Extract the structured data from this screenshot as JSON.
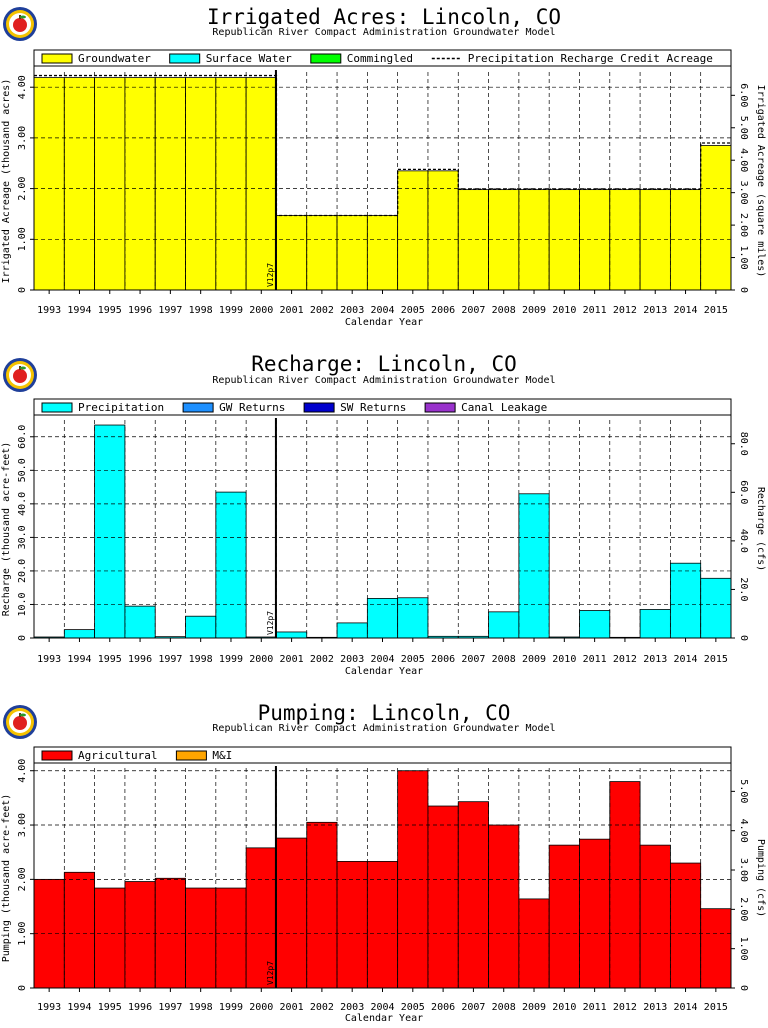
{
  "years": [
    "1993",
    "1994",
    "1995",
    "1996",
    "1997",
    "1998",
    "1999",
    "2000",
    "2001",
    "2002",
    "2003",
    "2004",
    "2005",
    "2006",
    "2007",
    "2008",
    "2009",
    "2010",
    "2011",
    "2012",
    "2013",
    "2014",
    "2015"
  ],
  "marker_label": "V12p7",
  "colors": {
    "groundwater": "#ffff00",
    "surface_water": "#00ffff",
    "commingled": "#00ff00",
    "precipitation": "#00ffff",
    "gw_returns": "#1e90ff",
    "sw_returns": "#0000cd",
    "canal_leakage": "#9932cc",
    "agricultural": "#ff0000",
    "mi": "#ffa500"
  },
  "chart_data": [
    {
      "type": "bar",
      "title": "Irrigated Acres: Lincoln, CO",
      "subtitle": "Republican River Compact Administration Groundwater Model",
      "xlabel": "Calendar Year",
      "ylabel": "Irrigated Acreage (thousand acres)",
      "ylabel_right": "Irrigated Acreage (square miles)",
      "ylim": [
        0,
        4.3
      ],
      "yticks": [
        {
          "v": 0,
          "t": "0"
        },
        {
          "v": 1,
          "t": "1.00"
        },
        {
          "v": 2,
          "t": "2.00"
        },
        {
          "v": 3,
          "t": "3.00"
        },
        {
          "v": 4,
          "t": "4.00"
        }
      ],
      "yticks_right": [
        {
          "v": 0,
          "t": "0"
        },
        {
          "v": 0.64,
          "t": "1.00"
        },
        {
          "v": 1.28,
          "t": "2.00"
        },
        {
          "v": 1.92,
          "t": "3.00"
        },
        {
          "v": 2.56,
          "t": "4.00"
        },
        {
          "v": 3.2,
          "t": "5.00"
        },
        {
          "v": 3.84,
          "t": "6.00"
        }
      ],
      "legend": [
        "Groundwater",
        "Surface Water",
        "Commingled",
        "Precipitation Recharge Credit Acreage"
      ],
      "legend_position": "top",
      "grid": true,
      "series": [
        {
          "name": "Groundwater",
          "color_key": "groundwater",
          "values": [
            4.19,
            4.19,
            4.19,
            4.19,
            4.19,
            4.19,
            4.19,
            4.19,
            1.47,
            1.47,
            1.47,
            1.47,
            2.35,
            2.35,
            1.98,
            1.98,
            1.98,
            1.98,
            1.98,
            1.98,
            1.98,
            1.98,
            2.85
          ]
        },
        {
          "name": "Surface Water",
          "color_key": "surface_water",
          "values": [
            0,
            0,
            0,
            0,
            0,
            0,
            0,
            0,
            0,
            0,
            0,
            0,
            0,
            0,
            0,
            0,
            0,
            0,
            0,
            0,
            0,
            0,
            0
          ]
        },
        {
          "name": "Commingled",
          "color_key": "commingled",
          "values": [
            0,
            0,
            0,
            0,
            0,
            0,
            0,
            0,
            0,
            0,
            0,
            0,
            0,
            0,
            0,
            0,
            0,
            0,
            0,
            0,
            0,
            0,
            0
          ]
        }
      ],
      "line": {
        "name": "Precipitation Recharge Credit Acreage",
        "values": [
          4.23,
          4.23,
          4.23,
          4.23,
          4.23,
          4.23,
          4.23,
          4.23,
          1.47,
          1.47,
          1.47,
          1.47,
          2.38,
          2.38,
          1.99,
          1.99,
          1.99,
          1.99,
          1.99,
          1.99,
          1.99,
          1.99,
          2.9
        ]
      }
    },
    {
      "type": "bar",
      "title": "Recharge: Lincoln, CO",
      "subtitle": "Republican River Compact Administration Groundwater Model",
      "xlabel": "Calendar Year",
      "ylabel": "Recharge (thousand acre-feet)",
      "ylabel_right": "Recharge (cfs)",
      "ylim": [
        0,
        65
      ],
      "yticks": [
        {
          "v": 0,
          "t": "0"
        },
        {
          "v": 10,
          "t": "10.0"
        },
        {
          "v": 20,
          "t": "20.0"
        },
        {
          "v": 30,
          "t": "30.0"
        },
        {
          "v": 40,
          "t": "40.0"
        },
        {
          "v": 50,
          "t": "50.0"
        },
        {
          "v": 60,
          "t": "60.0"
        }
      ],
      "yticks_right": [
        {
          "v": 0,
          "t": "0"
        },
        {
          "v": 14.48,
          "t": "20.0"
        },
        {
          "v": 28.96,
          "t": "40.0"
        },
        {
          "v": 43.44,
          "t": "60.0"
        },
        {
          "v": 57.92,
          "t": "80.0"
        }
      ],
      "legend": [
        "Precipitation",
        "GW Returns",
        "SW Returns",
        "Canal Leakage"
      ],
      "legend_position": "top",
      "grid": true,
      "series": [
        {
          "name": "Precipitation",
          "color_key": "precipitation",
          "values": [
            0.3,
            2.5,
            63.5,
            9.5,
            0.4,
            6.5,
            43.5,
            0.3,
            1.8,
            0.2,
            4.5,
            11.8,
            12.0,
            0.5,
            0.5,
            7.8,
            43.0,
            0.3,
            8.2,
            0.2,
            8.5,
            22.3,
            17.8
          ]
        },
        {
          "name": "GW Returns",
          "color_key": "gw_returns",
          "values": [
            0,
            0,
            0,
            0,
            0,
            0,
            0,
            0,
            0,
            0,
            0,
            0,
            0,
            0,
            0,
            0,
            0,
            0,
            0,
            0,
            0,
            0,
            0
          ]
        },
        {
          "name": "SW Returns",
          "color_key": "sw_returns",
          "values": [
            0,
            0,
            0,
            0,
            0,
            0,
            0,
            0,
            0,
            0,
            0,
            0,
            0,
            0,
            0,
            0,
            0,
            0,
            0,
            0,
            0,
            0,
            0
          ]
        },
        {
          "name": "Canal Leakage",
          "color_key": "canal_leakage",
          "values": [
            0,
            0,
            0,
            0,
            0,
            0,
            0,
            0,
            0,
            0,
            0,
            0,
            0,
            0,
            0,
            0,
            0,
            0,
            0,
            0,
            0,
            0,
            0
          ]
        }
      ]
    },
    {
      "type": "bar",
      "title": "Pumping: Lincoln, CO",
      "subtitle": "Republican River Compact Administration Groundwater Model",
      "xlabel": "Calendar Year",
      "ylabel": "Pumping (thousand acre-feet)",
      "ylabel_right": "Pumping (cfs)",
      "ylim": [
        0,
        4.05
      ],
      "yticks": [
        {
          "v": 0,
          "t": "0"
        },
        {
          "v": 1,
          "t": "1.00"
        },
        {
          "v": 2,
          "t": "2.00"
        },
        {
          "v": 3,
          "t": "3.00"
        },
        {
          "v": 4,
          "t": "4.00"
        }
      ],
      "yticks_right": [
        {
          "v": 0,
          "t": "0"
        },
        {
          "v": 0.724,
          "t": "1.00"
        },
        {
          "v": 1.448,
          "t": "2.00"
        },
        {
          "v": 2.172,
          "t": "3.00"
        },
        {
          "v": 2.896,
          "t": "4.00"
        },
        {
          "v": 3.62,
          "t": "5.00"
        }
      ],
      "legend": [
        "Agricultural",
        "M&I"
      ],
      "legend_position": "top",
      "grid": true,
      "series": [
        {
          "name": "Agricultural",
          "color_key": "agricultural",
          "values": [
            2.0,
            2.13,
            1.84,
            1.96,
            2.02,
            1.84,
            1.84,
            2.58,
            2.76,
            3.05,
            2.33,
            2.33,
            4.0,
            3.35,
            3.43,
            3.0,
            1.64,
            2.63,
            2.74,
            3.8,
            2.63,
            2.3,
            1.46
          ]
        },
        {
          "name": "M&I",
          "color_key": "mi",
          "values": [
            0,
            0,
            0,
            0,
            0,
            0,
            0,
            0,
            0,
            0,
            0,
            0,
            0,
            0,
            0,
            0,
            0,
            0,
            0,
            0,
            0,
            0,
            0
          ]
        }
      ]
    }
  ]
}
